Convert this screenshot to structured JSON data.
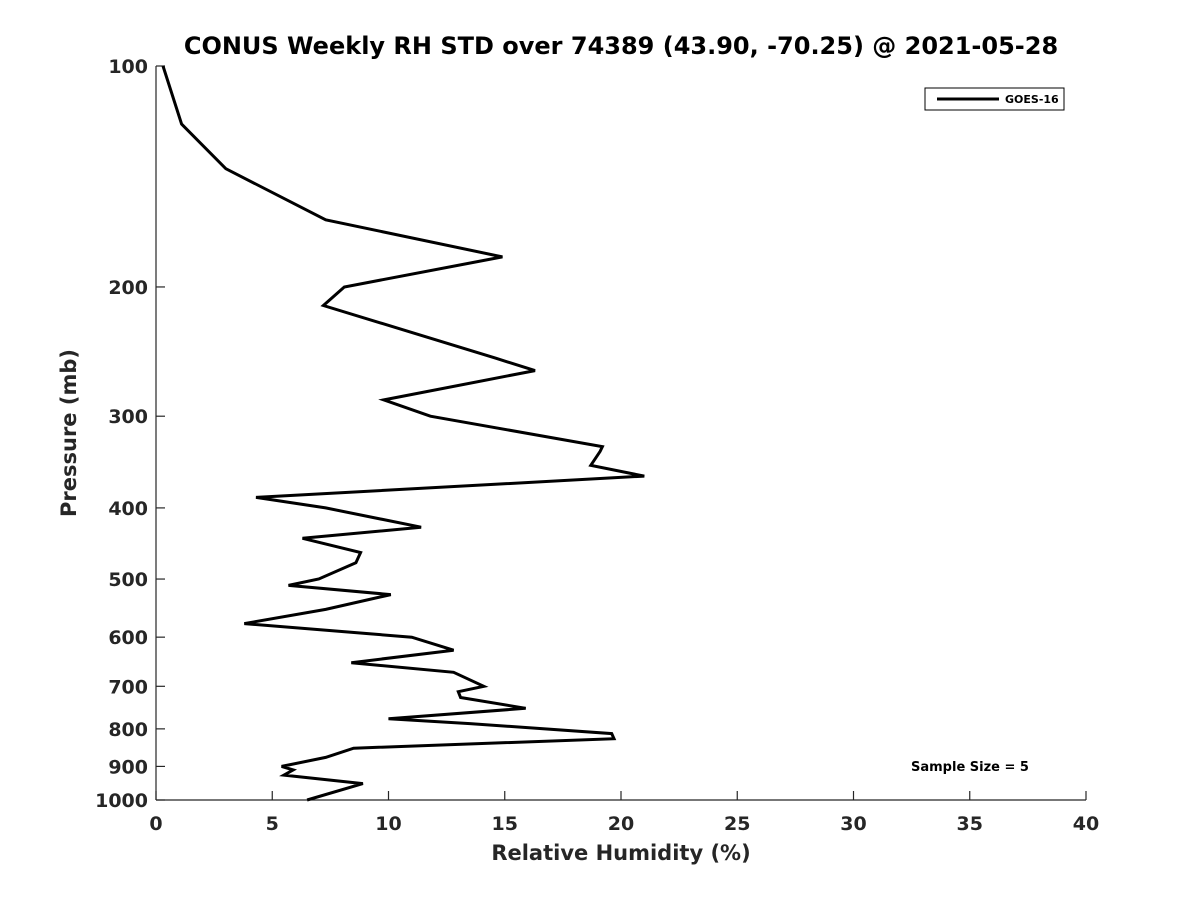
{
  "chart_data": {
    "type": "line",
    "title": "CONUS Weekly RH STD over 74389 (43.90, -70.25) @ 2021-05-28",
    "xlabel": "Relative Humidity (%)",
    "ylabel": "Pressure (mb)",
    "xlim": [
      0,
      40
    ],
    "ylim": [
      100,
      1000
    ],
    "y_scale": "log",
    "y_reversed": true,
    "grid": false,
    "legend_position": "top-right",
    "x_ticks": [
      0,
      5,
      10,
      15,
      20,
      25,
      30,
      35,
      40
    ],
    "x_tick_labels": [
      "0",
      "5",
      "10",
      "15",
      "20",
      "25",
      "30",
      "35",
      "40"
    ],
    "y_ticks": [
      100,
      200,
      300,
      400,
      500,
      600,
      700,
      800,
      900,
      1000
    ],
    "y_tick_labels": [
      "100",
      "200",
      "300",
      "400",
      "500",
      "600",
      "700",
      "800",
      "900",
      "1000"
    ],
    "series": [
      {
        "name": "GOES-16",
        "color": "#000000",
        "points": [
          [
            6.5,
            1000
          ],
          [
            8.9,
            950
          ],
          [
            5.5,
            925
          ],
          [
            5.9,
            910
          ],
          [
            5.4,
            900
          ],
          [
            7.3,
            875
          ],
          [
            8.5,
            850
          ],
          [
            19.7,
            825
          ],
          [
            19.6,
            812
          ],
          [
            13.5,
            787
          ],
          [
            10.0,
            775
          ],
          [
            15.9,
            750
          ],
          [
            13.1,
            725
          ],
          [
            13.0,
            712
          ],
          [
            14.1,
            700
          ],
          [
            12.8,
            670
          ],
          [
            8.4,
            650
          ],
          [
            12.8,
            625
          ],
          [
            11.0,
            600
          ],
          [
            3.8,
            575
          ],
          [
            7.3,
            550
          ],
          [
            10.1,
            525
          ],
          [
            5.7,
            510
          ],
          [
            7.0,
            500
          ],
          [
            8.6,
            475
          ],
          [
            8.8,
            460
          ],
          [
            6.3,
            440
          ],
          [
            11.4,
            425
          ],
          [
            7.3,
            400
          ],
          [
            4.3,
            387
          ],
          [
            21.0,
            362
          ],
          [
            18.7,
            350
          ],
          [
            19.1,
            335
          ],
          [
            19.2,
            330
          ],
          [
            11.8,
            300
          ],
          [
            9.8,
            285
          ],
          [
            16.3,
            260
          ],
          [
            14.6,
            250
          ],
          [
            7.2,
            212
          ],
          [
            8.1,
            200
          ],
          [
            14.9,
            182
          ],
          [
            7.3,
            162
          ],
          [
            3.0,
            138
          ],
          [
            1.1,
            120
          ],
          [
            0.3,
            100
          ]
        ]
      }
    ],
    "annotation": "Sample Size = 5"
  }
}
